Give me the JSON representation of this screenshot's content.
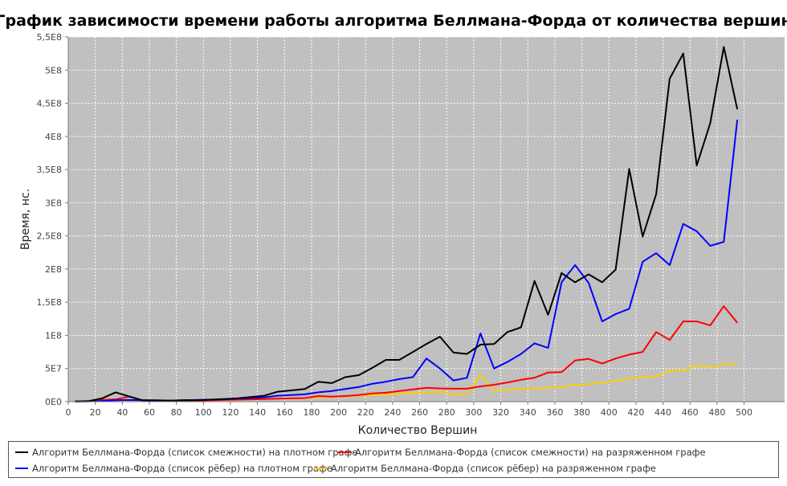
{
  "chart_data": {
    "type": "line",
    "title": "График зависимости времени работы алгоритма Беллмана-Форда от количества вершин",
    "xlabel": "Количество Вершин",
    "ylabel": "Время, нс.",
    "xlim": [
      0,
      530
    ],
    "ylim": [
      0,
      550000000
    ],
    "x_ticks": [
      0,
      20,
      40,
      60,
      80,
      100,
      120,
      140,
      160,
      180,
      200,
      220,
      240,
      260,
      280,
      300,
      320,
      340,
      360,
      380,
      400,
      420,
      440,
      460,
      480,
      500
    ],
    "x_tick_labels": [
      "0",
      "20",
      "40",
      "60",
      "80",
      "100",
      "120",
      "140",
      "160",
      "180",
      "200",
      "220",
      "240",
      "260",
      "280",
      "300",
      "320",
      "340",
      "360",
      "380",
      "400",
      "420",
      "440",
      "460",
      "480",
      "500"
    ],
    "y_ticks": [
      0,
      50000000,
      100000000,
      150000000,
      200000000,
      250000000,
      300000000,
      350000000,
      400000000,
      450000000,
      500000000,
      550000000
    ],
    "y_tick_labels": [
      "0E0",
      "5E7",
      "1E8",
      "1,5E8",
      "2E8",
      "2,5E8",
      "3E8",
      "3,5E8",
      "4E8",
      "4,5E8",
      "5E8",
      "5,5E8"
    ],
    "grid": true,
    "legend_position": "bottom",
    "x": [
      5,
      15,
      25,
      35,
      45,
      55,
      65,
      75,
      85,
      95,
      105,
      115,
      125,
      135,
      145,
      155,
      165,
      175,
      185,
      195,
      205,
      215,
      225,
      235,
      245,
      255,
      265,
      275,
      285,
      295,
      305,
      315,
      325,
      335,
      345,
      355,
      365,
      375,
      385,
      395,
      405,
      415,
      425,
      435,
      445,
      455,
      465,
      475,
      485,
      495
    ],
    "series": [
      {
        "name": "Алгоритм Беллмана-Форда (список смежности) на плотном графе",
        "color": "#000000",
        "values": [
          300000,
          800000,
          5000000,
          14000000,
          8000000,
          2000000,
          2000000,
          1500000,
          2000000,
          2000000,
          3000000,
          4000000,
          5000000,
          7000000,
          9000000,
          15000000,
          17000000,
          19000000,
          30000000,
          28000000,
          37000000,
          40000000,
          51000000,
          63000000,
          63000000,
          75000000,
          87000000,
          98000000,
          74000000,
          72000000,
          86000000,
          87000000,
          105000000,
          112000000,
          182000000,
          131000000,
          194000000,
          180000000,
          192000000,
          180000000,
          199000000,
          351000000,
          249000000,
          313000000,
          487000000,
          525000000,
          356000000,
          420000000,
          535000000,
          441000000
        ]
      },
      {
        "name": "Алгоритм Беллмана-Форда (список смежности) на разряженном графе",
        "color": "#ff0000",
        "values": [
          200000,
          500000,
          2500000,
          3500000,
          7500000,
          2000000,
          1500000,
          1500000,
          1500000,
          1500000,
          2000000,
          2500000,
          3000000,
          3500000,
          4000000,
          4500000,
          5000000,
          5500000,
          8500000,
          7500000,
          8500000,
          10000000,
          12500000,
          13500000,
          16000000,
          18500000,
          21000000,
          20000000,
          19500000,
          19500000,
          23000000,
          25500000,
          29000000,
          33000000,
          36000000,
          44000000,
          44500000,
          62000000,
          64500000,
          57500000,
          65000000,
          71000000,
          75000000,
          105000000,
          93000000,
          121000000,
          121000000,
          115000000,
          144000000,
          119000000
        ]
      },
      {
        "name": "Алгоритм Беллмана-Форда (список рёбер) на плотном графе",
        "color": "#0000ff",
        "values": [
          200000,
          500000,
          1000000,
          2000000,
          2500000,
          2000000,
          1500000,
          1500000,
          2000000,
          2500000,
          3000000,
          3500000,
          4500000,
          5500000,
          6500000,
          9000000,
          10000000,
          11000000,
          14000000,
          16000000,
          19000000,
          22000000,
          27000000,
          30000000,
          34000000,
          37000000,
          65000000,
          50000000,
          32000000,
          36000000,
          103000000,
          50000000,
          60000000,
          72000000,
          88000000,
          81000000,
          180000000,
          206000000,
          179000000,
          121000000,
          132000000,
          140000000,
          211000000,
          224000000,
          206000000,
          268000000,
          257000000,
          235000000,
          241000000,
          425000000
        ]
      },
      {
        "name": "Алгоритм Беллмана-Форда (список рёбер) на разряженном графе",
        "color": "#ffcc00",
        "values": [
          100000,
          300000,
          800000,
          1500000,
          2000000,
          1500000,
          1500000,
          1500000,
          1500000,
          1500000,
          2000000,
          2500000,
          3000000,
          3500000,
          4000000,
          4500000,
          5000000,
          5500000,
          6500000,
          7000000,
          8000000,
          9000000,
          10000000,
          11000000,
          12000000,
          13000000,
          14000000,
          15000000,
          11000000,
          11000000,
          41000000,
          16000000,
          18000000,
          19000000,
          20000000,
          21000000,
          22000000,
          25000000,
          26000000,
          29000000,
          31000000,
          35000000,
          37000000,
          38000000,
          47000000,
          47000000,
          55000000,
          51000000,
          57000000,
          56000000
        ]
      }
    ]
  }
}
